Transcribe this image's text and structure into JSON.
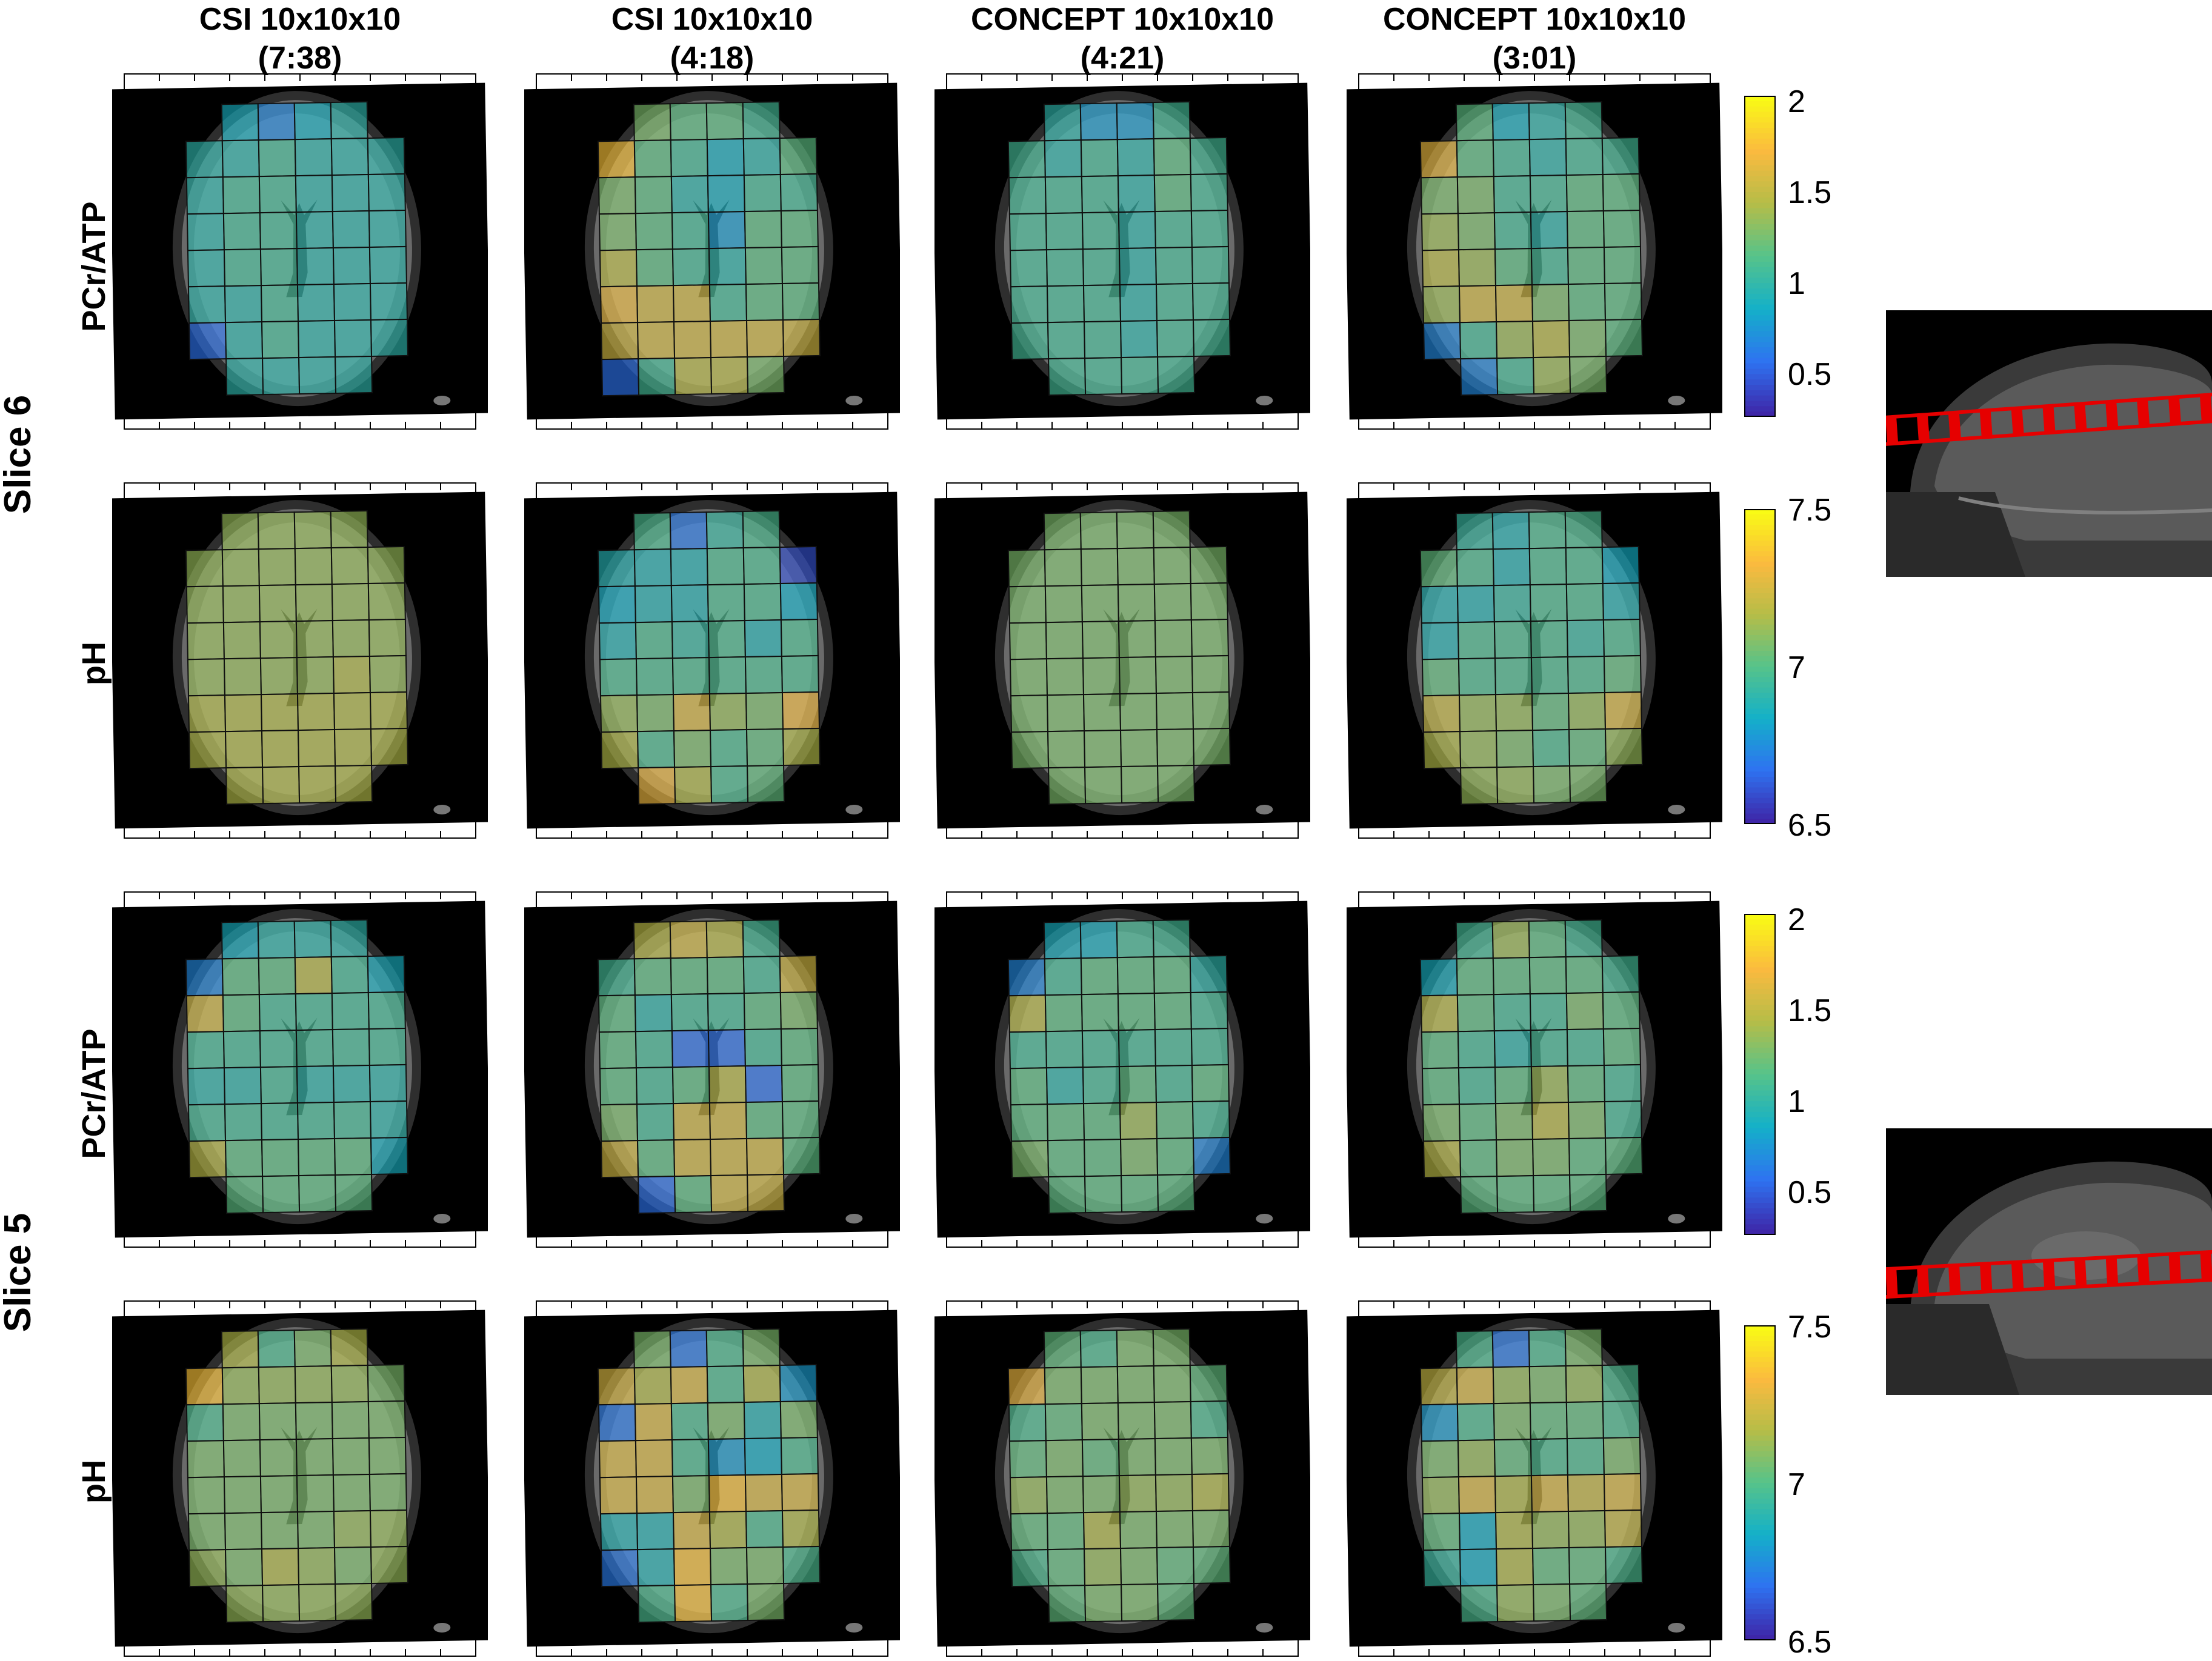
{
  "columns": [
    {
      "name": "CSI 10x10x10",
      "time": "(7:38)"
    },
    {
      "name": "CSI 10x10x10",
      "time": "(4:18)"
    },
    {
      "name": "CONCEPT 10x10x10",
      "time": "(4:21)"
    },
    {
      "name": "CONCEPT 10x10x10",
      "time": "(3:01)"
    }
  ],
  "slices": [
    "Slice 6",
    "Slice 5"
  ],
  "rows": [
    {
      "label": "PCr/ATP",
      "colorbar_ticks": [
        "2",
        "1.5",
        "1",
        "0.5"
      ],
      "range": [
        0.3,
        2.05
      ]
    },
    {
      "label": "pH",
      "colorbar_ticks": [
        "7.5",
        "7",
        "6.5"
      ],
      "range": [
        6.5,
        7.55
      ]
    },
    {
      "label": "PCr/ATP",
      "colorbar_ticks": [
        "2",
        "1.5",
        "1",
        "0.5"
      ],
      "range": [
        0.3,
        2.05
      ]
    },
    {
      "label": "pH",
      "colorbar_ticks": [
        "7.5",
        "7",
        "6.5"
      ],
      "range": [
        6.5,
        7.55
      ]
    }
  ],
  "colors": {
    "colormap": [
      "#3e26a8",
      "#2e73f1",
      "#14b0c8",
      "#56c38a",
      "#b5bd48",
      "#fbba3f",
      "#f9fb15"
    ],
    "overlay_line": "#e60000"
  },
  "maps": [
    [
      [
        [
          0,
          0,
          0.9,
          0.7,
          0.9,
          1.0,
          0,
          0
        ],
        [
          0,
          1.0,
          1.0,
          1.1,
          1.0,
          1.0,
          1.0,
          0
        ],
        [
          0,
          1.0,
          1.1,
          1.1,
          1.0,
          1.0,
          1.0,
          0
        ],
        [
          0,
          1.0,
          1.1,
          1.1,
          1.0,
          1.0,
          1.0,
          0
        ],
        [
          0,
          1.0,
          1.1,
          1.1,
          1.0,
          1.0,
          1.0,
          0
        ],
        [
          0,
          1.0,
          1.0,
          1.1,
          1.0,
          1.0,
          1.0,
          0
        ],
        [
          0,
          0.6,
          1.0,
          1.1,
          1.0,
          1.0,
          1.0,
          0
        ],
        [
          0,
          0,
          1.0,
          1.0,
          1.0,
          1.0,
          0,
          0
        ]
      ],
      [
        [
          0,
          0,
          1.3,
          1.2,
          1.2,
          1.1,
          0,
          0
        ],
        [
          0,
          1.8,
          1.2,
          1.1,
          0.9,
          1.0,
          1.2,
          0
        ],
        [
          0,
          1.3,
          1.2,
          1.0,
          0.9,
          1.1,
          1.1,
          0
        ],
        [
          0,
          1.3,
          1.2,
          1.1,
          0.8,
          1.2,
          1.2,
          0
        ],
        [
          0,
          1.5,
          1.2,
          1.1,
          1.0,
          1.2,
          1.2,
          0
        ],
        [
          0,
          1.7,
          1.6,
          1.6,
          1.1,
          1.2,
          1.2,
          0
        ],
        [
          0,
          1.6,
          1.6,
          1.6,
          1.6,
          1.6,
          1.6,
          0
        ],
        [
          0,
          0.6,
          1.1,
          1.5,
          1.5,
          1.3,
          0,
          0
        ]
      ],
      [
        [
          0,
          0,
          1.0,
          0.8,
          0.8,
          1.1,
          0,
          0
        ],
        [
          0,
          1.1,
          1.0,
          1.1,
          1.0,
          1.2,
          1.1,
          0
        ],
        [
          0,
          1.1,
          1.1,
          1.1,
          1.0,
          1.2,
          1.1,
          0
        ],
        [
          0,
          1.1,
          1.1,
          1.1,
          1.0,
          1.1,
          1.1,
          0
        ],
        [
          0,
          1.1,
          1.1,
          1.1,
          1.0,
          1.1,
          1.1,
          0
        ],
        [
          0,
          1.1,
          1.1,
          1.1,
          1.0,
          1.1,
          1.1,
          0
        ],
        [
          0,
          1.1,
          1.1,
          1.1,
          1.0,
          1.1,
          1.1,
          0
        ],
        [
          0,
          0,
          1.1,
          1.1,
          1.1,
          1.1,
          0,
          0
        ]
      ],
      [
        [
          0,
          0,
          1.2,
          0.9,
          1.0,
          1.1,
          0,
          0
        ],
        [
          0,
          1.7,
          1.2,
          1.1,
          1.0,
          1.1,
          1.1,
          0
        ],
        [
          0,
          1.3,
          1.3,
          1.1,
          1.1,
          1.2,
          1.2,
          0
        ],
        [
          0,
          1.4,
          1.3,
          1.1,
          1.0,
          1.2,
          1.2,
          0
        ],
        [
          0,
          1.5,
          1.4,
          1.2,
          1.1,
          1.2,
          1.2,
          0
        ],
        [
          0,
          1.4,
          1.6,
          1.6,
          1.3,
          1.2,
          1.2,
          0
        ],
        [
          0,
          0.7,
          1.1,
          1.4,
          1.5,
          1.3,
          1.2,
          0
        ],
        [
          0,
          0,
          0.7,
          1.1,
          1.4,
          1.3,
          0,
          0
        ]
      ]
    ],
    [
      [
        [
          0,
          0,
          7.15,
          7.15,
          7.15,
          7.15,
          0,
          0
        ],
        [
          0,
          7.15,
          7.15,
          7.15,
          7.15,
          7.15,
          7.15,
          0
        ],
        [
          0,
          7.15,
          7.15,
          7.15,
          7.15,
          7.15,
          7.15,
          0
        ],
        [
          0,
          7.15,
          7.15,
          7.15,
          7.15,
          7.15,
          7.15,
          0
        ],
        [
          0,
          7.15,
          7.15,
          7.15,
          7.15,
          7.2,
          7.15,
          0
        ],
        [
          0,
          7.2,
          7.2,
          7.2,
          7.2,
          7.2,
          7.2,
          0
        ],
        [
          0,
          7.2,
          7.2,
          7.2,
          7.2,
          7.2,
          7.2,
          0
        ],
        [
          0,
          0,
          7.2,
          7.2,
          7.2,
          7.2,
          0,
          0
        ]
      ],
      [
        [
          0,
          0,
          7.0,
          6.7,
          6.95,
          7.0,
          0,
          0
        ],
        [
          0,
          6.9,
          6.9,
          6.9,
          7.0,
          7.0,
          6.6,
          0
        ],
        [
          0,
          6.85,
          6.9,
          6.9,
          7.0,
          7.0,
          6.85,
          0
        ],
        [
          0,
          6.9,
          7.0,
          6.95,
          7.0,
          6.9,
          7.0,
          0
        ],
        [
          0,
          7.0,
          7.0,
          7.0,
          7.0,
          7.0,
          7.0,
          0
        ],
        [
          0,
          7.15,
          7.1,
          7.3,
          7.15,
          7.1,
          7.35,
          0
        ],
        [
          0,
          7.2,
          7.0,
          7.1,
          7.0,
          7.05,
          7.2,
          0
        ],
        [
          0,
          0,
          7.35,
          7.2,
          7.0,
          7.05,
          0,
          0
        ]
      ],
      [
        [
          0,
          0,
          7.1,
          7.1,
          7.1,
          7.1,
          0,
          0
        ],
        [
          0,
          7.1,
          7.1,
          7.1,
          7.1,
          7.1,
          7.1,
          0
        ],
        [
          0,
          7.1,
          7.1,
          7.1,
          7.1,
          7.1,
          7.1,
          0
        ],
        [
          0,
          7.1,
          7.1,
          7.1,
          7.1,
          7.1,
          7.1,
          0
        ],
        [
          0,
          7.1,
          7.1,
          7.1,
          7.1,
          7.1,
          7.1,
          0
        ],
        [
          0,
          7.1,
          7.1,
          7.1,
          7.1,
          7.1,
          7.1,
          0
        ],
        [
          0,
          7.1,
          7.1,
          7.1,
          7.1,
          7.1,
          7.1,
          0
        ],
        [
          0,
          0,
          7.1,
          7.1,
          7.1,
          7.1,
          0,
          0
        ]
      ],
      [
        [
          0,
          0,
          6.95,
          6.9,
          7.0,
          7.0,
          0,
          0
        ],
        [
          0,
          7.05,
          7.0,
          6.9,
          7.0,
          7.0,
          6.85,
          0
        ],
        [
          0,
          6.9,
          6.9,
          6.95,
          7.0,
          7.0,
          6.9,
          0
        ],
        [
          0,
          6.9,
          7.0,
          7.0,
          7.0,
          6.95,
          7.0,
          0
        ],
        [
          0,
          7.05,
          7.0,
          7.0,
          7.0,
          7.0,
          7.05,
          0
        ],
        [
          0,
          7.25,
          7.15,
          7.15,
          7.05,
          7.15,
          7.3,
          0
        ],
        [
          0,
          7.2,
          7.15,
          7.1,
          7.0,
          7.05,
          7.15,
          0
        ],
        [
          0,
          0,
          7.15,
          7.15,
          7.1,
          7.1,
          0,
          0
        ]
      ]
    ],
    [
      [
        [
          0,
          0,
          0.9,
          1.0,
          1.0,
          1.0,
          0,
          0
        ],
        [
          0,
          0.7,
          1.2,
          1.2,
          1.5,
          1.1,
          0.9,
          0
        ],
        [
          0,
          1.6,
          1.2,
          1.1,
          1.1,
          1.1,
          1.1,
          0
        ],
        [
          0,
          1.1,
          1.1,
          1.1,
          1.1,
          1.1,
          1.1,
          0
        ],
        [
          0,
          1.0,
          1.0,
          1.1,
          1.0,
          1.0,
          1.0,
          0
        ],
        [
          0,
          1.1,
          1.1,
          1.1,
          1.1,
          1.1,
          1.0,
          0
        ],
        [
          0,
          1.5,
          1.2,
          1.2,
          1.2,
          1.2,
          0.9,
          0
        ],
        [
          0,
          0,
          1.2,
          1.2,
          1.2,
          1.2,
          0,
          0
        ]
      ],
      [
        [
          0,
          0,
          1.5,
          1.6,
          1.5,
          1.1,
          0,
          0
        ],
        [
          0,
          1.1,
          1.2,
          1.2,
          1.2,
          1.1,
          1.6,
          0
        ],
        [
          0,
          1.2,
          1.0,
          1.1,
          1.1,
          1.2,
          1.3,
          0
        ],
        [
          0,
          1.2,
          1.1,
          0.6,
          0.6,
          1.1,
          1.2,
          0
        ],
        [
          0,
          1.2,
          1.1,
          1.2,
          1.5,
          0.6,
          1.2,
          0
        ],
        [
          0,
          1.3,
          1.1,
          1.6,
          1.6,
          1.2,
          1.2,
          0
        ],
        [
          0,
          1.6,
          1.2,
          1.6,
          1.6,
          1.6,
          1.2,
          0
        ],
        [
          0,
          0,
          0.6,
          1.2,
          1.6,
          1.6,
          0,
          0
        ]
      ],
      [
        [
          0,
          0,
          0.9,
          0.9,
          1.1,
          1.1,
          0,
          0
        ],
        [
          0,
          0.7,
          1.1,
          1.2,
          1.2,
          1.2,
          1.0,
          0
        ],
        [
          0,
          1.5,
          1.2,
          1.2,
          1.2,
          1.2,
          1.1,
          0
        ],
        [
          0,
          1.1,
          1.1,
          1.1,
          1.1,
          1.1,
          1.1,
          0
        ],
        [
          0,
          1.2,
          1.0,
          1.1,
          1.2,
          1.1,
          1.2,
          0
        ],
        [
          0,
          1.2,
          1.2,
          1.2,
          1.4,
          1.2,
          1.1,
          0
        ],
        [
          0,
          1.3,
          1.2,
          1.2,
          1.3,
          1.2,
          0.7,
          0
        ],
        [
          0,
          0,
          1.2,
          1.2,
          1.2,
          1.2,
          0,
          0
        ]
      ],
      [
        [
          0,
          0,
          1.1,
          1.4,
          1.2,
          1.1,
          0,
          0
        ],
        [
          0,
          0.9,
          1.2,
          1.2,
          1.2,
          1.2,
          1.1,
          0
        ],
        [
          0,
          1.5,
          1.2,
          1.1,
          1.1,
          1.3,
          1.2,
          0
        ],
        [
          0,
          1.2,
          1.1,
          1.0,
          1.1,
          1.1,
          1.2,
          0
        ],
        [
          0,
          1.2,
          1.1,
          1.2,
          1.4,
          1.2,
          1.1,
          0
        ],
        [
          0,
          1.3,
          1.2,
          1.3,
          1.5,
          1.3,
          1.1,
          0
        ],
        [
          0,
          1.5,
          1.2,
          1.3,
          1.3,
          1.2,
          1.2,
          0
        ],
        [
          0,
          0,
          1.2,
          1.2,
          1.2,
          1.2,
          0,
          0
        ]
      ]
    ],
    [
      [
        [
          0,
          0,
          7.2,
          7.0,
          7.1,
          7.2,
          0,
          0
        ],
        [
          0,
          7.4,
          7.15,
          7.15,
          7.15,
          7.15,
          7.1,
          0
        ],
        [
          0,
          7.0,
          7.1,
          7.1,
          7.1,
          7.1,
          7.1,
          0
        ],
        [
          0,
          7.1,
          7.1,
          7.1,
          7.1,
          7.1,
          7.1,
          0
        ],
        [
          0,
          7.1,
          7.1,
          7.1,
          7.1,
          7.1,
          7.1,
          0
        ],
        [
          0,
          7.1,
          7.1,
          7.1,
          7.1,
          7.15,
          7.15,
          0
        ],
        [
          0,
          7.15,
          7.1,
          7.2,
          7.15,
          7.1,
          7.15,
          0
        ],
        [
          0,
          0,
          7.15,
          7.15,
          7.15,
          7.15,
          0,
          0
        ]
      ],
      [
        [
          0,
          0,
          7.1,
          6.7,
          7.0,
          7.1,
          0,
          0
        ],
        [
          0,
          7.3,
          7.2,
          7.3,
          7.0,
          7.2,
          6.8,
          0
        ],
        [
          0,
          6.7,
          7.3,
          7.0,
          7.1,
          6.9,
          7.1,
          0
        ],
        [
          0,
          7.3,
          7.3,
          7.0,
          6.8,
          6.85,
          7.0,
          0
        ],
        [
          0,
          7.3,
          7.3,
          7.1,
          7.4,
          7.3,
          7.3,
          0
        ],
        [
          0,
          6.9,
          6.9,
          7.3,
          7.2,
          7.0,
          7.2,
          0
        ],
        [
          0,
          6.7,
          6.9,
          7.4,
          7.1,
          7.1,
          7.0,
          0
        ],
        [
          0,
          0,
          7.0,
          7.4,
          7.0,
          7.1,
          0,
          0
        ]
      ],
      [
        [
          0,
          0,
          7.05,
          7.0,
          7.1,
          7.1,
          0,
          0
        ],
        [
          0,
          7.35,
          7.1,
          7.1,
          7.1,
          7.1,
          7.05,
          0
        ],
        [
          0,
          7.0,
          7.05,
          7.1,
          7.1,
          7.1,
          7.0,
          0
        ],
        [
          0,
          7.05,
          7.1,
          7.05,
          7.1,
          7.1,
          7.1,
          0
        ],
        [
          0,
          7.15,
          7.1,
          7.1,
          7.15,
          7.15,
          7.2,
          0
        ],
        [
          0,
          7.05,
          7.05,
          7.2,
          7.1,
          7.1,
          7.1,
          0
        ],
        [
          0,
          7.0,
          7.05,
          7.15,
          7.1,
          7.05,
          7.05,
          0
        ],
        [
          0,
          0,
          7.05,
          7.1,
          7.1,
          7.05,
          0,
          0
        ]
      ],
      [
        [
          0,
          0,
          7.0,
          6.7,
          7.0,
          7.1,
          0,
          0
        ],
        [
          0,
          7.25,
          7.3,
          7.15,
          7.1,
          7.15,
          7.0,
          0
        ],
        [
          0,
          6.8,
          7.0,
          7.1,
          7.05,
          7.05,
          7.0,
          0
        ],
        [
          0,
          7.1,
          7.15,
          7.05,
          7.0,
          7.0,
          7.1,
          0
        ],
        [
          0,
          7.15,
          7.3,
          7.2,
          7.3,
          7.25,
          7.3,
          0
        ],
        [
          0,
          7.05,
          6.85,
          7.2,
          7.15,
          7.15,
          7.25,
          0
        ],
        [
          0,
          6.95,
          6.85,
          7.2,
          7.05,
          7.05,
          7.0,
          0
        ],
        [
          0,
          0,
          7.0,
          7.15,
          7.1,
          7.05,
          0,
          0
        ]
      ]
    ]
  ]
}
